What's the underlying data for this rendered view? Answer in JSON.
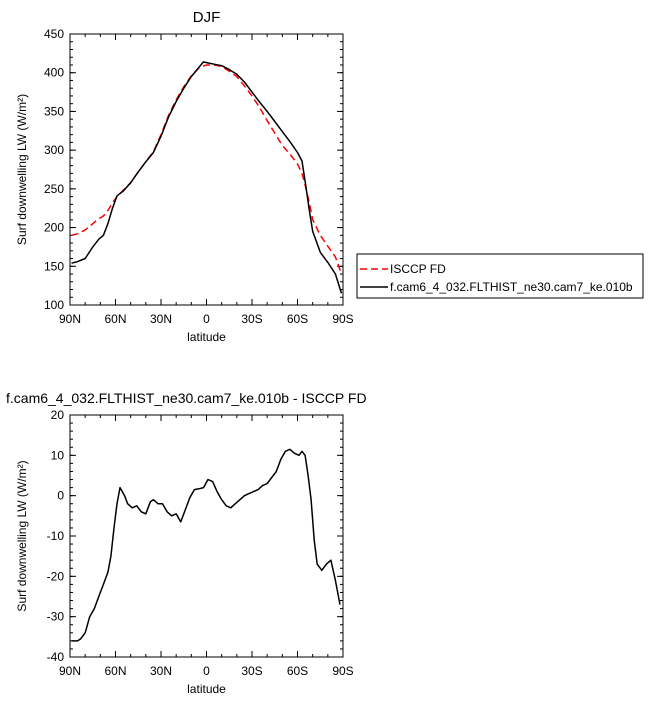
{
  "chart_data": [
    {
      "type": "line",
      "title": "DJF",
      "xlabel": "latitude",
      "ylabel": "Surf downwelling LW (W/m²)",
      "xlim": [
        90,
        -90
      ],
      "ylim": [
        100,
        450
      ],
      "x_ticks": [
        90,
        60,
        30,
        0,
        -30,
        -60,
        -90
      ],
      "x_tick_labels": [
        "90N",
        "60N",
        "30N",
        "0",
        "30S",
        "60S",
        "90S"
      ],
      "y_ticks": [
        100,
        150,
        200,
        250,
        300,
        350,
        400,
        450
      ],
      "y_tick_labels": [
        "100",
        "150",
        "200",
        "250",
        "300",
        "350",
        "400",
        "450"
      ],
      "legend_position": "right",
      "series": [
        {
          "name": "ISCCP FD",
          "color": "#ff0000",
          "dash": "dashed",
          "x": [
            89,
            85,
            80,
            75,
            72,
            68,
            65,
            62,
            59,
            55,
            50,
            45,
            40,
            35,
            30,
            25,
            20,
            15,
            10,
            5,
            0,
            -5,
            -10,
            -15,
            -20,
            -25,
            -30,
            -35,
            -40,
            -45,
            -50,
            -55,
            -60,
            -63,
            -65,
            -68,
            -70,
            -75,
            -80,
            -85,
            -89
          ],
          "y": [
            190,
            192,
            197,
            205,
            210,
            215,
            222,
            232,
            240,
            248,
            258,
            272,
            285,
            298,
            320,
            345,
            365,
            382,
            396,
            406,
            410,
            410,
            408,
            402,
            395,
            383,
            370,
            355,
            338,
            322,
            306,
            295,
            282,
            270,
            255,
            230,
            210,
            190,
            176,
            162,
            140
          ]
        },
        {
          "name": "f.cam6_4_032.FLTHIST_ne30.cam7_ke.010b",
          "color": "#000000",
          "dash": "solid",
          "x": [
            89,
            85,
            80,
            75,
            71,
            68,
            65,
            62,
            59,
            55,
            50,
            45,
            40,
            35,
            30,
            25,
            20,
            15,
            10,
            5,
            2,
            0,
            -5,
            -10,
            -15,
            -20,
            -25,
            -30,
            -35,
            -40,
            -45,
            -50,
            -55,
            -60,
            -63,
            -65,
            -68,
            -70,
            -75,
            -80,
            -85,
            -89
          ],
          "y": [
            154,
            156,
            160,
            175,
            185,
            190,
            205,
            225,
            241,
            247,
            258,
            272,
            285,
            297,
            318,
            343,
            363,
            380,
            395,
            407,
            414,
            413,
            411,
            409,
            404,
            398,
            388,
            375,
            362,
            350,
            337,
            324,
            311,
            297,
            286,
            260,
            220,
            195,
            168,
            155,
            140,
            115
          ]
        }
      ]
    },
    {
      "type": "line",
      "title": "f.cam6_4_032.FLTHIST_ne30.cam7_ke.010b - ISCCP FD",
      "xlabel": "latitude",
      "ylabel": "Surf downwelling LW (W/m²)",
      "xlim": [
        90,
        -90
      ],
      "ylim": [
        -40,
        20
      ],
      "x_ticks": [
        90,
        60,
        30,
        0,
        -30,
        -60,
        -90
      ],
      "x_tick_labels": [
        "90N",
        "60N",
        "30N",
        "0",
        "30S",
        "60S",
        "90S"
      ],
      "y_ticks": [
        -40,
        -30,
        -20,
        -10,
        0,
        10,
        20
      ],
      "y_tick_labels": [
        "-40",
        "-30",
        "-20",
        "-10",
        "0",
        "10",
        "20"
      ],
      "series": [
        {
          "color": "#000000",
          "dash": "solid",
          "x": [
            89,
            85,
            83,
            80,
            77,
            74,
            71,
            68,
            65,
            63,
            61,
            59,
            57,
            54,
            52,
            49,
            46,
            43,
            40,
            37,
            35,
            32,
            29,
            26,
            23,
            20,
            17,
            14,
            11,
            8,
            5,
            2,
            -1,
            -4,
            -7,
            -10,
            -13,
            -16,
            -19,
            -22,
            -25,
            -28,
            -31,
            -34,
            -37,
            -40,
            -43,
            -46,
            -49,
            -52,
            -55,
            -58,
            -61,
            -63,
            -65,
            -67,
            -69,
            -71,
            -73,
            -76,
            -79,
            -82,
            -85,
            -88
          ],
          "y": [
            -36,
            -36,
            -35.5,
            -34,
            -30,
            -28,
            -25,
            -22,
            -19,
            -15,
            -8,
            -2,
            2,
            0,
            -2,
            -3,
            -2.5,
            -4,
            -4.5,
            -1.5,
            -1,
            -2,
            -2,
            -4,
            -5,
            -4.5,
            -6.5,
            -3.5,
            -0.5,
            1.5,
            1.7,
            2,
            4,
            3.5,
            1,
            -1,
            -2.5,
            -3,
            -2,
            -1,
            0,
            0.5,
            1,
            1.5,
            2.5,
            3,
            4.5,
            6,
            9,
            11,
            11.5,
            10.5,
            10,
            11,
            10,
            5,
            -1,
            -11,
            -17,
            -18.5,
            -17,
            -16,
            -21,
            -27
          ]
        }
      ]
    }
  ]
}
